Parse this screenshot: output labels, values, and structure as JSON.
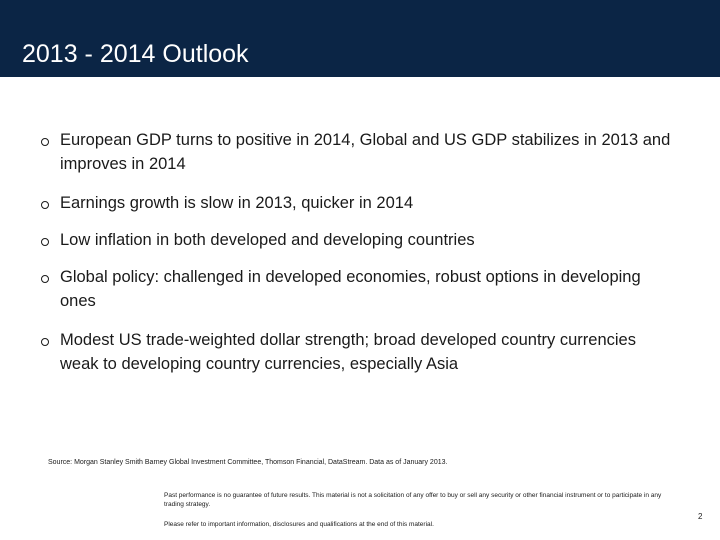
{
  "header": {
    "title": "2013 - 2014 Outlook",
    "background_color": "#0b2545",
    "text_color": "#ffffff"
  },
  "bullets": [
    "European GDP turns to positive in 2014, Global and US GDP stabilizes in 2013 and improves in 2014",
    "Earnings growth is slow in 2013, quicker in 2014",
    "Low inflation in both developed and developing countries",
    "Global policy: challenged in developed economies, robust options in developing ones",
    "Modest US trade-weighted dollar strength; broad developed country currencies weak to developing country currencies, especially Asia"
  ],
  "footer": {
    "source": "Source: Morgan Stanley Smith Barney Global Investment Committee, Thomson Financial, DataStream. Data as of January 2013.",
    "disclaimer": "Past performance is no guarantee of future results. This material is not a solicitation of any offer to buy or sell any security or other financial instrument or to participate in any trading strategy.",
    "disclosure_note": "Please refer to important information, disclosures and qualifications at the end of this material.",
    "page_number": "2"
  }
}
